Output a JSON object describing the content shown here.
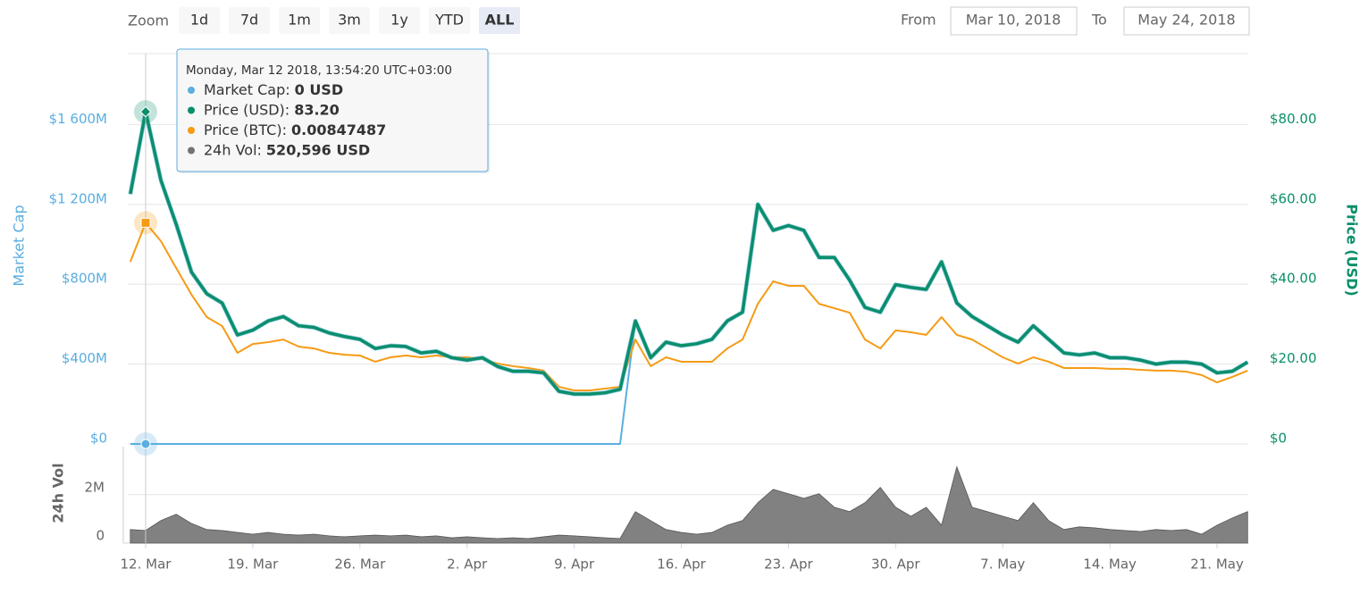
{
  "toolbar": {
    "zoom_label": "Zoom",
    "buttons": [
      "1d",
      "7d",
      "1m",
      "3m",
      "1y",
      "YTD",
      "ALL"
    ],
    "active": "ALL",
    "from_label": "From",
    "from": "Mar 10, 2018",
    "to_label": "To",
    "to": "May 24, 2018"
  },
  "tooltip": {
    "date": "Monday, Mar 12 2018, 13:54:20 UTC+03:00",
    "items": [
      {
        "label": "Market Cap:",
        "value": "0 USD",
        "color": "#5aaee0"
      },
      {
        "label": "Price (USD):",
        "value": "83.20",
        "color": "#0a8f6a"
      },
      {
        "label": "Price (BTC):",
        "value": "0.00847487",
        "color": "#f59b14"
      },
      {
        "label": "24h Vol:",
        "value": "520,596 USD",
        "color": "#737373"
      }
    ]
  },
  "chart_data": {
    "type": "line",
    "ylabel": "Market Cap",
    "y2label": "Price (USD)",
    "vollabel": "24h Vol",
    "xlim": [
      "2018-03-10T20:00Z",
      "2018-05-23T01:00Z"
    ],
    "xticks": [
      {
        "value": "2018-03-12",
        "label": "12. Mar"
      },
      {
        "value": "2018-03-19",
        "label": "19. Mar"
      },
      {
        "value": "2018-03-26",
        "label": "26. Mar"
      },
      {
        "value": "2018-04-02",
        "label": "2. Apr"
      },
      {
        "value": "2018-04-09",
        "label": "9. Apr"
      },
      {
        "value": "2018-04-16",
        "label": "16. Apr"
      },
      {
        "value": "2018-04-23",
        "label": "23. Apr"
      },
      {
        "value": "2018-04-30",
        "label": "30. Apr"
      },
      {
        "value": "2018-05-07",
        "label": "7. May"
      },
      {
        "value": "2018-05-14",
        "label": "14. May"
      },
      {
        "value": "2018-05-21",
        "label": "21. May"
      }
    ],
    "ylim": [
      0,
      2000000000
    ],
    "yticks": [
      {
        "value": 0,
        "label": "$0"
      },
      {
        "value": 400000000,
        "label": "$400M"
      },
      {
        "value": 800000000,
        "label": "$800M"
      },
      {
        "value": 1200000000,
        "label": "$1 200M"
      },
      {
        "value": 1600000000,
        "label": "$1 600M"
      }
    ],
    "y2lim": [
      0,
      100
    ],
    "y2ticks": [
      {
        "value": 0,
        "label": "$0"
      },
      {
        "value": 20,
        "label": "$20.00"
      },
      {
        "value": 40,
        "label": "$40.00"
      },
      {
        "value": 60,
        "label": "$60.00"
      },
      {
        "value": 80,
        "label": "$80.00"
      }
    ],
    "y3lim": [
      0,
      0.0153
    ],
    "vollim": [
      0,
      3800000
    ],
    "volticks": [
      0,
      {
        "value": 2000000,
        "label": "2M"
      }
    ],
    "grid": true,
    "x": [
      "2018-03-11",
      "2018-03-12",
      "2018-03-13",
      "2018-03-14",
      "2018-03-15",
      "2018-03-16",
      "2018-03-17",
      "2018-03-18",
      "2018-03-19",
      "2018-03-20",
      "2018-03-21",
      "2018-03-22",
      "2018-03-23",
      "2018-03-24",
      "2018-03-25",
      "2018-03-26",
      "2018-03-27",
      "2018-03-28",
      "2018-03-29",
      "2018-03-30",
      "2018-03-31",
      "2018-04-01",
      "2018-04-02",
      "2018-04-03",
      "2018-04-04",
      "2018-04-05",
      "2018-04-06",
      "2018-04-07",
      "2018-04-08",
      "2018-04-09",
      "2018-04-10",
      "2018-04-11",
      "2018-04-12",
      "2018-04-13",
      "2018-04-14",
      "2018-04-15",
      "2018-04-16",
      "2018-04-17",
      "2018-04-18",
      "2018-04-19",
      "2018-04-20",
      "2018-04-21",
      "2018-04-22",
      "2018-04-23",
      "2018-04-24",
      "2018-04-25",
      "2018-04-26",
      "2018-04-27",
      "2018-04-28",
      "2018-04-29",
      "2018-04-30",
      "2018-05-01",
      "2018-05-02",
      "2018-05-03",
      "2018-05-04",
      "2018-05-05",
      "2018-05-06",
      "2018-05-07",
      "2018-05-08",
      "2018-05-09",
      "2018-05-10",
      "2018-05-11",
      "2018-05-12",
      "2018-05-13",
      "2018-05-14",
      "2018-05-15",
      "2018-05-16",
      "2018-05-17",
      "2018-05-18",
      "2018-05-19",
      "2018-05-20",
      "2018-05-21",
      "2018-05-22",
      "2018-05-23"
    ],
    "series": [
      {
        "name": "Market Cap",
        "color": "#5aaee0",
        "axis": "y",
        "values": [
          0,
          0,
          0,
          0,
          0,
          0,
          0,
          0,
          0,
          0,
          0,
          0,
          0,
          0,
          0,
          0,
          0,
          0,
          0,
          0,
          0,
          0,
          0,
          0,
          0,
          0,
          0,
          0,
          0,
          0,
          0,
          0,
          0,
          616000000,
          432000000,
          510000000,
          492000000,
          502000000,
          524000000,
          616000000,
          660000000,
          1200000000,
          1070000000,
          1094000000,
          1070000000,
          934000000,
          934000000,
          820000000,
          684000000,
          660000000,
          798000000,
          784000000,
          774000000,
          912000000,
          706000000,
          638000000,
          592000000,
          546000000,
          510000000,
          592000000,
          524000000,
          456000000,
          446000000,
          456000000,
          432000000,
          432000000,
          420000000,
          400000000,
          410000000,
          410000000,
          400000000,
          356000000,
          364000000,
          410000000
        ]
      },
      {
        "name": "Price (BTC)",
        "color": "#f59b14",
        "axis": "y3",
        "values": [
          0.00698,
          0.00847487,
          0.00777,
          0.00674,
          0.00572,
          0.00486,
          0.00452,
          0.00349,
          0.00383,
          0.0039,
          0.004,
          0.00373,
          0.00366,
          0.00349,
          0.00342,
          0.00339,
          0.00315,
          0.00332,
          0.00339,
          0.00332,
          0.00339,
          0.00332,
          0.00332,
          0.00325,
          0.00308,
          0.00298,
          0.00291,
          0.00281,
          0.00219,
          0.00205,
          0.00205,
          0.00212,
          0.00219,
          0.004,
          0.00298,
          0.00332,
          0.00315,
          0.00315,
          0.00315,
          0.00366,
          0.004,
          0.00537,
          0.00623,
          0.00606,
          0.00606,
          0.00537,
          0.0052,
          0.00503,
          0.004,
          0.00366,
          0.00435,
          0.00428,
          0.00418,
          0.00486,
          0.00418,
          0.004,
          0.00366,
          0.00332,
          0.00308,
          0.00332,
          0.00315,
          0.00291,
          0.00291,
          0.00291,
          0.00288,
          0.00288,
          0.00284,
          0.00281,
          0.00281,
          0.00277,
          0.00264,
          0.00236,
          0.00257,
          0.00281
        ]
      },
      {
        "name": "Price (USD)",
        "color": "#0a8f6a",
        "axis": "y2",
        "values": [
          62.6,
          83.2,
          66,
          55,
          43,
          37.6,
          35.3,
          27.3,
          28.5,
          30.8,
          31.9,
          29.6,
          29.2,
          27.8,
          26.9,
          26.2,
          23.9,
          24.6,
          24.4,
          22.8,
          23.2,
          21.6,
          21,
          21.6,
          19.4,
          18.2,
          18.2,
          17.8,
          13.2,
          12.5,
          12.5,
          12.8,
          13.7,
          30.8,
          21.6,
          25.5,
          24.6,
          25.1,
          26.2,
          30.8,
          33,
          60,
          53.5,
          54.7,
          53.5,
          46.7,
          46.7,
          41,
          34.2,
          33,
          39.9,
          39.2,
          38.7,
          45.6,
          35.3,
          31.9,
          29.6,
          27.3,
          25.5,
          29.6,
          26.2,
          22.8,
          22.3,
          22.8,
          21.6,
          21.6,
          21,
          20,
          20.5,
          20.5,
          20,
          17.8,
          18.2,
          20.5
        ]
      },
      {
        "name": "24h Vol",
        "color": "#737373",
        "axis": "vol",
        "values": [
          560000,
          520596,
          930000,
          1190000,
          810000,
          560000,
          520000,
          440000,
          370000,
          440000,
          370000,
          330000,
          370000,
          300000,
          260000,
          300000,
          330000,
          300000,
          330000,
          260000,
          300000,
          220000,
          260000,
          220000,
          190000,
          220000,
          190000,
          260000,
          330000,
          300000,
          260000,
          220000,
          190000,
          1300000,
          930000,
          560000,
          440000,
          370000,
          440000,
          740000,
          930000,
          1670000,
          2220000,
          2040000,
          1850000,
          2040000,
          1480000,
          1300000,
          1670000,
          2300000,
          1480000,
          1110000,
          1480000,
          740000,
          3150000,
          1480000,
          1300000,
          1110000,
          930000,
          1670000,
          930000,
          560000,
          670000,
          630000,
          560000,
          520000,
          480000,
          560000,
          520000,
          560000,
          370000,
          740000,
          1040000,
          1300000
        ]
      }
    ]
  }
}
